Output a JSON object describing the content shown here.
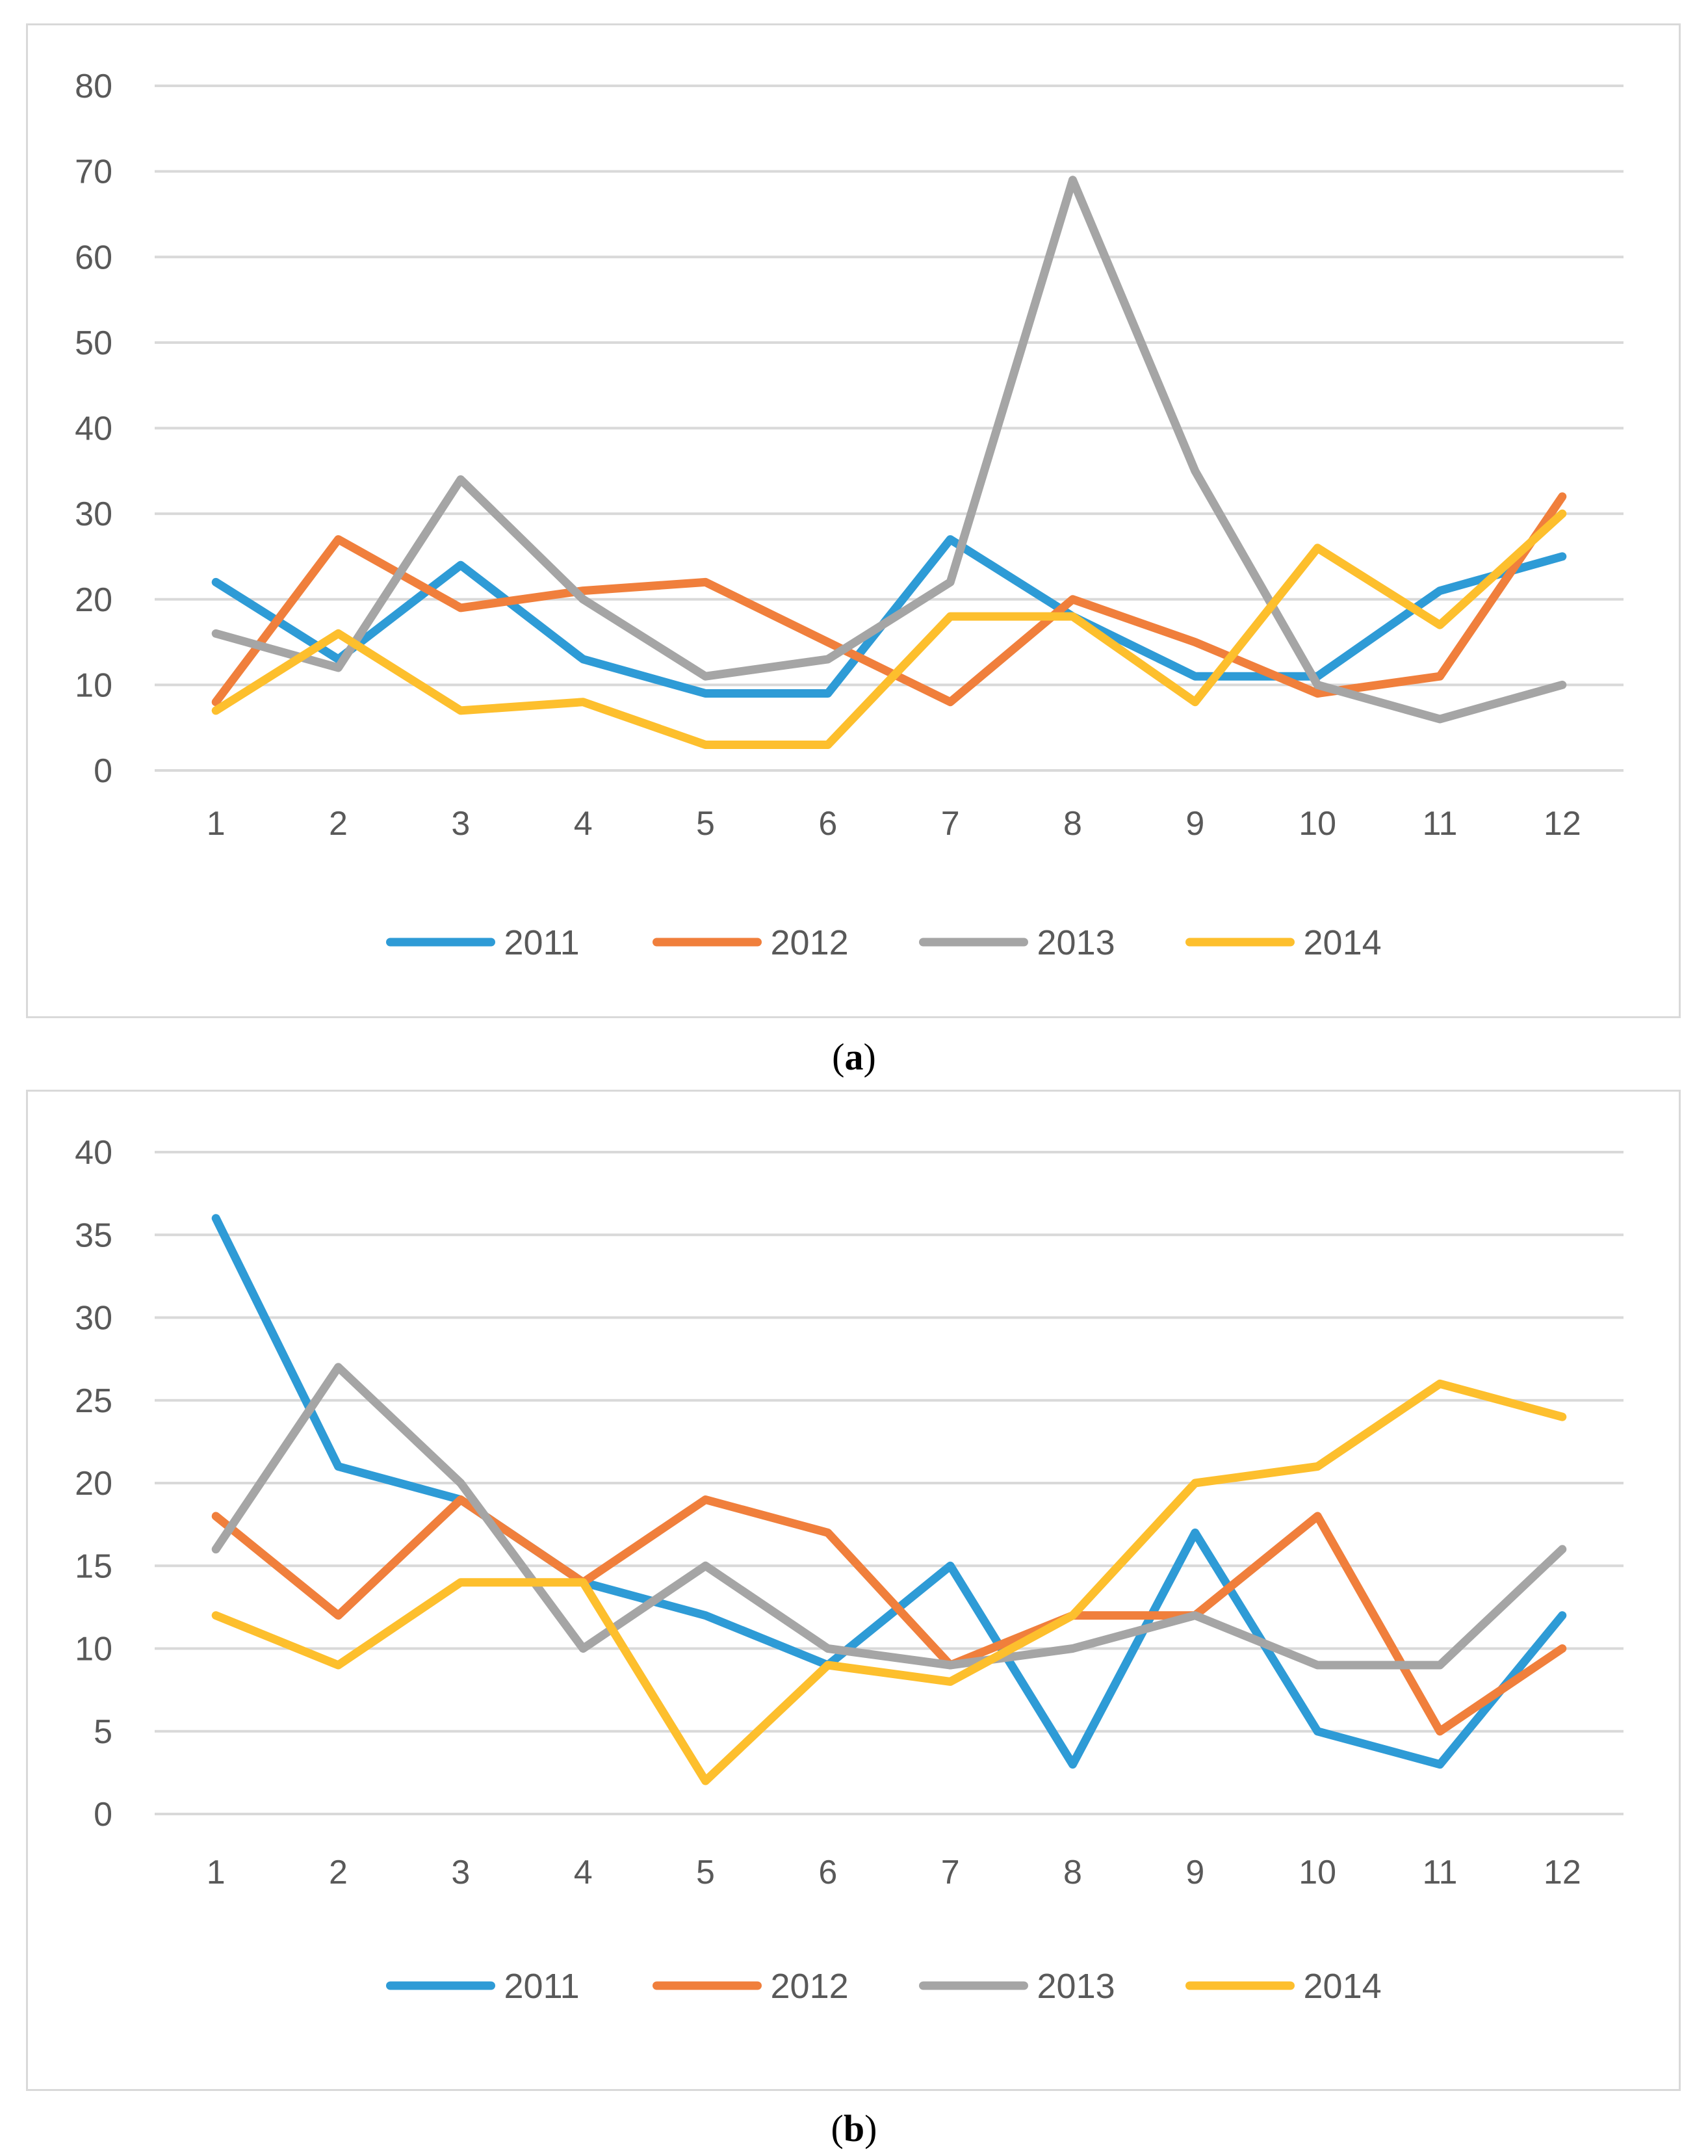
{
  "colors": {
    "grid": "#d9d9d9",
    "tick_text": "#595959",
    "series": [
      "#2E9BD6",
      "#F07F3C",
      "#A5A5A5",
      "#FDBF2D"
    ]
  },
  "chart_data": [
    {
      "type": "line",
      "caption_open": "(",
      "caption_letter": "a",
      "caption_close": ")",
      "x": [
        "1",
        "2",
        "3",
        "4",
        "5",
        "6",
        "7",
        "8",
        "9",
        "10",
        "11",
        "12"
      ],
      "ylim": [
        0,
        80
      ],
      "yticks": [
        0,
        10,
        20,
        30,
        40,
        50,
        60,
        70,
        80
      ],
      "grid": true,
      "legend_position": "bottom",
      "series": [
        {
          "name": "2011",
          "values": [
            22,
            13,
            24,
            13,
            9,
            9,
            27,
            18,
            11,
            11,
            21,
            25
          ]
        },
        {
          "name": "2012",
          "values": [
            8,
            27,
            19,
            21,
            22,
            15,
            8,
            20,
            15,
            9,
            11,
            32
          ]
        },
        {
          "name": "2013",
          "values": [
            16,
            12,
            34,
            20,
            11,
            13,
            22,
            69,
            35,
            10,
            6,
            10
          ]
        },
        {
          "name": "2014",
          "values": [
            7,
            16,
            7,
            8,
            3,
            3,
            18,
            18,
            8,
            26,
            17,
            30
          ]
        }
      ]
    },
    {
      "type": "line",
      "caption_open": "(",
      "caption_letter": "b",
      "caption_close": ")",
      "x": [
        "1",
        "2",
        "3",
        "4",
        "5",
        "6",
        "7",
        "8",
        "9",
        "10",
        "11",
        "12"
      ],
      "ylim": [
        0,
        40
      ],
      "yticks": [
        0,
        5,
        10,
        15,
        20,
        25,
        30,
        35,
        40
      ],
      "grid": true,
      "legend_position": "bottom",
      "series": [
        {
          "name": "2011",
          "values": [
            36,
            21,
            19,
            14,
            12,
            9,
            15,
            3,
            17,
            5,
            3,
            12
          ]
        },
        {
          "name": "2012",
          "values": [
            18,
            12,
            19,
            14,
            19,
            17,
            9,
            12,
            12,
            18,
            5,
            10
          ]
        },
        {
          "name": "2013",
          "values": [
            16,
            27,
            20,
            10,
            15,
            10,
            9,
            10,
            12,
            9,
            9,
            16
          ]
        },
        {
          "name": "2014",
          "values": [
            12,
            9,
            14,
            14,
            2,
            9,
            8,
            12,
            20,
            21,
            26,
            24
          ]
        }
      ]
    }
  ]
}
